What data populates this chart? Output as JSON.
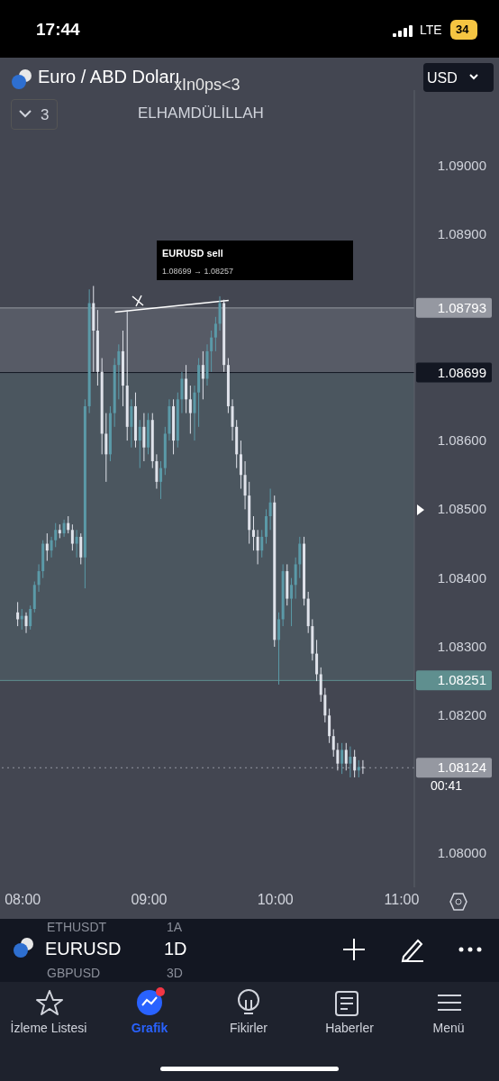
{
  "chart_data": {
    "type": "candlestick",
    "title": "Euro / ABD Doları",
    "x": [
      7.96,
      7.993,
      8.027,
      8.06,
      8.093,
      8.127,
      8.16,
      8.193,
      8.227,
      8.26,
      8.293,
      8.327,
      8.36,
      8.393,
      8.427,
      8.46,
      8.493,
      8.527,
      8.56,
      8.593,
      8.627,
      8.66,
      8.693,
      8.727,
      8.76,
      8.793,
      8.827,
      8.86,
      8.893,
      8.927,
      8.96,
      8.993,
      9.027,
      9.06,
      9.093,
      9.127,
      9.16,
      9.193,
      9.227,
      9.26,
      9.293,
      9.327,
      9.36,
      9.393,
      9.427,
      9.46,
      9.493,
      9.527,
      9.56,
      9.593,
      9.627,
      9.66,
      9.693,
      9.727,
      9.76,
      9.793,
      9.827,
      9.86,
      9.893,
      9.927,
      9.96,
      9.993,
      10.027,
      10.06,
      10.093,
      10.127,
      10.16,
      10.193,
      10.227,
      10.26,
      10.293,
      10.327,
      10.36,
      10.393,
      10.427,
      10.46,
      10.493,
      10.527,
      10.56,
      10.593,
      10.627,
      10.66,
      10.693
    ],
    "ohlc": [
      [
        1.0835,
        1.08365,
        1.0833,
        1.0834
      ],
      [
        1.0834,
        1.08355,
        1.08325,
        1.08345
      ],
      [
        1.08345,
        1.0835,
        1.0832,
        1.0833
      ],
      [
        1.0833,
        1.0836,
        1.08325,
        1.08355
      ],
      [
        1.08355,
        1.08395,
        1.0835,
        1.0839
      ],
      [
        1.0839,
        1.0842,
        1.0838,
        1.0841
      ],
      [
        1.0841,
        1.08455,
        1.084,
        1.0845
      ],
      [
        1.0845,
        1.08465,
        1.08425,
        1.0844
      ],
      [
        1.0844,
        1.0846,
        1.0843,
        1.08455
      ],
      [
        1.08455,
        1.0848,
        1.08445,
        1.0847
      ],
      [
        1.0847,
        1.08478,
        1.08458,
        1.08465
      ],
      [
        1.08465,
        1.08485,
        1.0846,
        1.0848
      ],
      [
        1.0848,
        1.0849,
        1.08465,
        1.0847
      ],
      [
        1.0847,
        1.08478,
        1.0844,
        1.0845
      ],
      [
        1.0845,
        1.0847,
        1.0843,
        1.0846
      ],
      [
        1.0846,
        1.08465,
        1.0842,
        1.0843
      ],
      [
        1.0843,
        1.0866,
        1.08385,
        1.0865
      ],
      [
        1.0865,
        1.0882,
        1.0864,
        1.088
      ],
      [
        1.088,
        1.08825,
        1.087,
        1.0876
      ],
      [
        1.0876,
        1.0879,
        1.0868,
        1.087
      ],
      [
        1.087,
        1.0872,
        1.0858,
        1.0861
      ],
      [
        1.0861,
        1.0864,
        1.0854,
        1.0858
      ],
      [
        1.0858,
        1.0865,
        1.0857,
        1.0864
      ],
      [
        1.0864,
        1.0872,
        1.0862,
        1.0871
      ],
      [
        1.0871,
        1.0874,
        1.0866,
        1.0873
      ],
      [
        1.0873,
        1.0876,
        1.0865,
        1.0868
      ],
      [
        1.0868,
        1.0879,
        1.086,
        1.0862
      ],
      [
        1.0862,
        1.0866,
        1.0859,
        1.0865
      ],
      [
        1.0865,
        1.0867,
        1.0859,
        1.086
      ],
      [
        1.086,
        1.0863,
        1.0856,
        1.0862
      ],
      [
        1.0862,
        1.0864,
        1.0857,
        1.0859
      ],
      [
        1.0859,
        1.0864,
        1.0858,
        1.0863
      ],
      [
        1.0863,
        1.0864,
        1.0856,
        1.0857
      ],
      [
        1.0857,
        1.0858,
        1.0853,
        1.0854
      ],
      [
        1.0854,
        1.0857,
        1.08515,
        1.0856
      ],
      [
        1.0856,
        1.0862,
        1.0855,
        1.0861
      ],
      [
        1.0861,
        1.0866,
        1.086,
        1.0865
      ],
      [
        1.0865,
        1.0866,
        1.0858,
        1.086
      ],
      [
        1.086,
        1.0867,
        1.0859,
        1.0866
      ],
      [
        1.0866,
        1.087,
        1.0864,
        1.0869
      ],
      [
        1.0869,
        1.0871,
        1.0864,
        1.0866
      ],
      [
        1.0866,
        1.0868,
        1.0861,
        1.0864
      ],
      [
        1.0864,
        1.0868,
        1.086,
        1.0867
      ],
      [
        1.0867,
        1.0872,
        1.0862,
        1.0871
      ],
      [
        1.0871,
        1.0873,
        1.0866,
        1.0869
      ],
      [
        1.0869,
        1.0874,
        1.0868,
        1.0873
      ],
      [
        1.0873,
        1.0876,
        1.087,
        1.0875
      ],
      [
        1.0875,
        1.0878,
        1.0873,
        1.0877
      ],
      [
        1.0877,
        1.0881,
        1.0876,
        1.088
      ],
      [
        1.088,
        1.08805,
        1.087,
        1.0871
      ],
      [
        1.0871,
        1.0872,
        1.0864,
        1.0865
      ],
      [
        1.0865,
        1.0866,
        1.086,
        1.0862
      ],
      [
        1.0862,
        1.0863,
        1.0856,
        1.0858
      ],
      [
        1.0858,
        1.086,
        1.0853,
        1.0855
      ],
      [
        1.0855,
        1.0857,
        1.085,
        1.0852
      ],
      [
        1.0852,
        1.0854,
        1.0845,
        1.0847
      ],
      [
        1.0847,
        1.0849,
        1.0844,
        1.0846
      ],
      [
        1.0846,
        1.0847,
        1.0842,
        1.0844
      ],
      [
        1.0844,
        1.0847,
        1.0843,
        1.0846
      ],
      [
        1.0846,
        1.085,
        1.0845,
        1.0849
      ],
      [
        1.0849,
        1.0853,
        1.0847,
        1.0851
      ],
      [
        1.0851,
        1.0852,
        1.083,
        1.0831
      ],
      [
        1.0831,
        1.0835,
        1.08245,
        1.0834
      ],
      [
        1.0834,
        1.0842,
        1.0833,
        1.0841
      ],
      [
        1.0841,
        1.0842,
        1.0836,
        1.0837
      ],
      [
        1.0837,
        1.084,
        1.0833,
        1.0839
      ],
      [
        1.0839,
        1.0843,
        1.0837,
        1.0842
      ],
      [
        1.0842,
        1.0846,
        1.084,
        1.0845
      ],
      [
        1.0845,
        1.0846,
        1.0836,
        1.0837
      ],
      [
        1.0837,
        1.0838,
        1.0832,
        1.0833
      ],
      [
        1.0833,
        1.0834,
        1.0828,
        1.0829
      ],
      [
        1.0829,
        1.0831,
        1.0825,
        1.0826
      ],
      [
        1.0826,
        1.0827,
        1.0822,
        1.0823
      ],
      [
        1.0823,
        1.0824,
        1.0819,
        1.082
      ],
      [
        1.082,
        1.0821,
        1.0816,
        1.0817
      ],
      [
        1.0817,
        1.0818,
        1.0814,
        1.0815
      ],
      [
        1.0815,
        1.0816,
        1.0812,
        1.0813
      ],
      [
        1.0813,
        1.0816,
        1.08115,
        1.0815
      ],
      [
        1.0815,
        1.0816,
        1.0812,
        1.0813
      ],
      [
        1.0813,
        1.08155,
        1.0811,
        1.0814
      ],
      [
        1.0814,
        1.0815,
        1.0811,
        1.0812
      ],
      [
        1.0812,
        1.08135,
        1.0811,
        1.08125
      ],
      [
        1.08125,
        1.08135,
        1.08115,
        1.08124
      ]
    ],
    "colors": [
      "#e0e3eb",
      "#5b9aa8",
      "#e0e3eb",
      "#5b9aa8",
      "#5b9aa8",
      "#5b9aa8",
      "#5b9aa8",
      "#e0e3eb",
      "#5b9aa8",
      "#5b9aa8",
      "#e0e3eb",
      "#5b9aa8",
      "#e0e3eb",
      "#e0e3eb",
      "#5b9aa8",
      "#e0e3eb",
      "#5b9aa8",
      "#5b9aa8",
      "#e0e3eb",
      "#e0e3eb",
      "#e0e3eb",
      "#e0e3eb",
      "#5b9aa8",
      "#5b9aa8",
      "#5b9aa8",
      "#e0e3eb",
      "#e0e3eb",
      "#5b9aa8",
      "#e0e3eb",
      "#5b9aa8",
      "#e0e3eb",
      "#5b9aa8",
      "#e0e3eb",
      "#e0e3eb",
      "#5b9aa8",
      "#5b9aa8",
      "#5b9aa8",
      "#e0e3eb",
      "#5b9aa8",
      "#5b9aa8",
      "#e0e3eb",
      "#e0e3eb",
      "#5b9aa8",
      "#5b9aa8",
      "#e0e3eb",
      "#5b9aa8",
      "#5b9aa8",
      "#5b9aa8",
      "#5b9aa8",
      "#e0e3eb",
      "#e0e3eb",
      "#e0e3eb",
      "#e0e3eb",
      "#e0e3eb",
      "#e0e3eb",
      "#e0e3eb",
      "#e0e3eb",
      "#e0e3eb",
      "#5b9aa8",
      "#5b9aa8",
      "#5b9aa8",
      "#e0e3eb",
      "#5b9aa8",
      "#5b9aa8",
      "#e0e3eb",
      "#5b9aa8",
      "#5b9aa8",
      "#5b9aa8",
      "#e0e3eb",
      "#e0e3eb",
      "#e0e3eb",
      "#e0e3eb",
      "#e0e3eb",
      "#e0e3eb",
      "#e0e3eb",
      "#e0e3eb",
      "#e0e3eb",
      "#5b9aa8",
      "#e0e3eb",
      "#5b9aa8",
      "#e0e3eb",
      "#5b9aa8",
      "#e0e3eb"
    ],
    "series": [
      {
        "type": "line",
        "x": [
          8.73,
          9.63
        ],
        "values": [
          1.08787,
          1.08804
        ],
        "color": "#ffffff"
      }
    ],
    "xlim": [
      7.82,
      11.1
    ],
    "xticks": [
      {
        "value": 8,
        "label": "08:00"
      },
      {
        "value": 9,
        "label": "09:00"
      },
      {
        "value": 10,
        "label": "10:00"
      },
      {
        "value": 11,
        "label": "11:00"
      }
    ],
    "ylim": [
      1.0795,
      1.0911
    ],
    "yticks": [
      {
        "value": 1.08,
        "label": "1.08000"
      },
      {
        "value": 1.082,
        "label": "1.08200"
      },
      {
        "value": 1.083,
        "label": "1.08300"
      },
      {
        "value": 1.084,
        "label": "1.08400"
      },
      {
        "value": 1.085,
        "label": "1.08500"
      },
      {
        "value": 1.086,
        "label": "1.08600"
      },
      {
        "value": 1.089,
        "label": "1.08900"
      },
      {
        "value": 1.09,
        "label": "1.09000"
      }
    ],
    "bands": [
      {
        "axis": "y",
        "from": 1.08699,
        "to": 1.08793,
        "color": "#5d606b"
      },
      {
        "axis": "y",
        "from": 1.08251,
        "to": 1.08699,
        "color": "#4e5a63"
      }
    ],
    "ref_lines": [
      {
        "axis": "y",
        "value": 1.08793,
        "label": "1.08793",
        "color": "#9598a1",
        "line_style": "solid"
      },
      {
        "axis": "y",
        "value": 1.08699,
        "label": "1.08699",
        "color": "#131722",
        "line_style": "solid"
      },
      {
        "axis": "y",
        "value": 1.08251,
        "label": "1.08251",
        "color": "#5f8f8f",
        "line_style": "solid"
      },
      {
        "axis": "y",
        "value": 1.08124,
        "label": "1.08124",
        "color": "#9598a1",
        "line_style": "dotted"
      }
    ],
    "annotations": [
      "xIn0ps<3",
      "ELHAMDÜLİLLAH",
      "EURUSD sell",
      "1.08699 → 1.08257",
      "00:41",
      "17:44",
      "LTE",
      "34",
      "USD",
      "3",
      "EURUSD",
      "1D",
      "ETHUSDT",
      "1A",
      "GBPUSD",
      "3D",
      "İzleme Listesi",
      "Grafik",
      "Fikirler",
      "Haberler",
      "Menü"
    ]
  }
}
